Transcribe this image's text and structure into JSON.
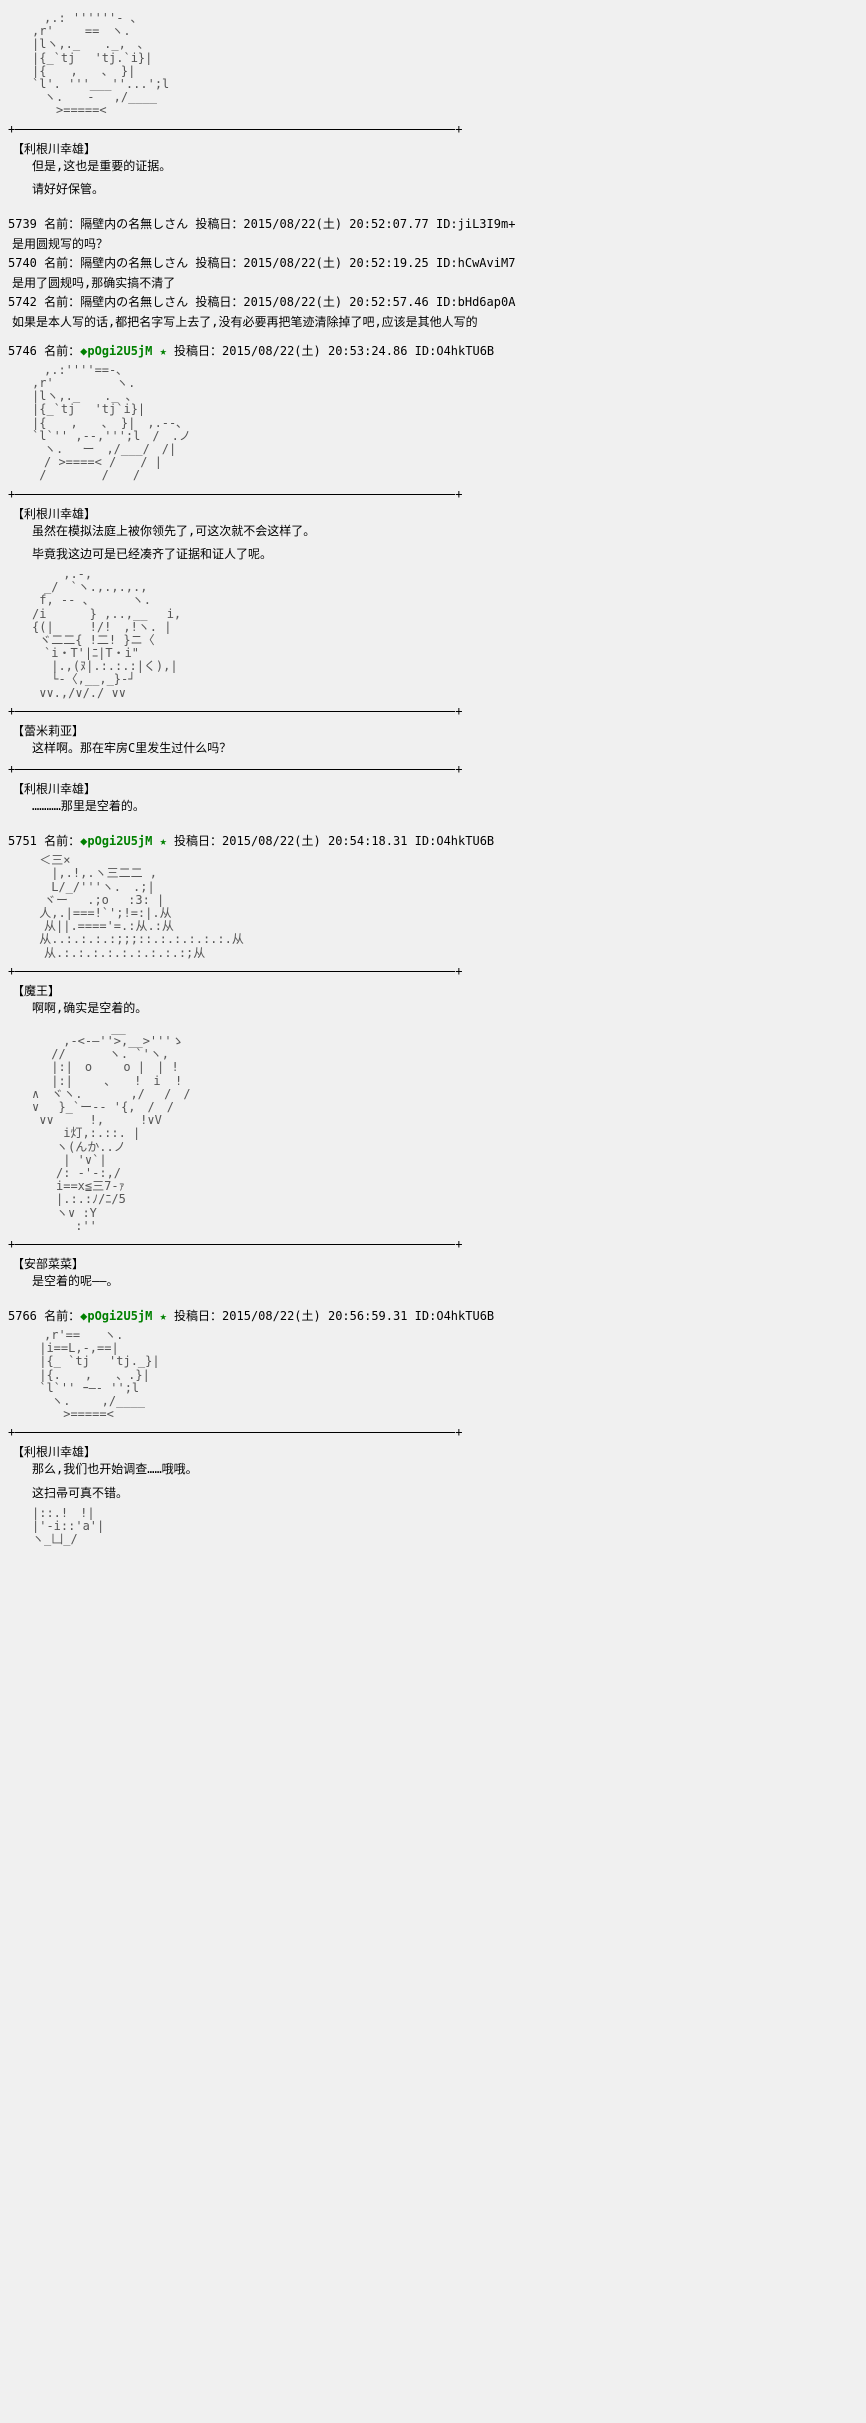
{
  "art": {
    "face1": "　　,.: ''''''- ､\n　,r'　　 ==　ヽ.\n　|lヽ,._　　._,　､\n　|{_`tj　 'tj.`i}|\n　|{　　,　　、 }|\n　`l'. '''___''...';l\n　　ヽ.　　-　 ,/____\n　　　>=====<",
    "face2": "　　,.:''''==-､\n　,r'　　 　　 ヽ.\n　|lヽ,._　　._ ､\n　|{_`tj　 'tj`i}|\n　|{　　,　　、 }|　,.--､\n　`l`'' ,--,''';l　/　.ノ\n　　ヽ.　 ー　,/___/　/|\n　　/ >====< /　　/ |\n　 /　　　　 /　　/",
    "chibi": "　　 　,.-,\n　　_/　`ヽ.,.,.,.,\n　 f, -- 、　　　 ヽ.\n　/i　　　 } ,..,__　 i,\n　{(|　　　!/!　,!ヽ. |\n　 ヾ二二{ !二! }ニ〈\n　　`i・T'|ﾆ|T・i\"\n　　 |.,(ﾇ|.:.:.:|く),|\n　　 └-〈,__,_}-┘\n　 ∨∨.,/∨/./ ∨∨",
    "maou": "　 ＜三×\n　　 |,.!,.ヽ三二二 ,\n　　 L/_/'''ヽ.　.;|\n　　ヾー　 .;o　 :3: |\n　 人,.|===!`';!=:|.从\n　　从||.===='=.:从.:从\n　 从..:.:.:.:;;;::.:.:.:.:.:.从\n　　从.:.:.:.:.:.:.:.:.:;从",
    "nana": "　　　　　　　 __\n　　 　,-<-―''>,__>'''ゝ \n　　 //　　　 ヽ. `'ヽ,\n　　 |:|　o　　 o |　| !\n　　 |:|　　 、　　!　i  !\n　∧　ヾヽ.　　　　,/　 /　/\n　∨　 }_`ー-- '{,　/　/\n　 ∨∨　　　!,　　　!∨V\n　　　 i灯,:.::. |\n　　　ヽ(んか..ノ\n　　　 | '∨`|\n　　　/: -'-:,/\n　　　i==x≦三7-ｧ\n　　　|.:.:ﾉ/ﾆ/5\n　　　ヽ∨ :Y\n　　　　 :''",
    "face3": "　　,r'==　　ヽ.\n　 |i==L,-,==|\n　 |{_ `tj　 'tj._}|\n　 |{.　　,　　、.}|\n　 `l`'' ｰ―- '';l\n　　 ヽ.　　 ,/____\n　　　 >=====<",
    "small": "　|::.!　!|\n　|'-i::'a'|\n　ヽ_凵_/"
  },
  "blocks": [
    {
      "type": "art",
      "key": "face1"
    },
    {
      "type": "div"
    },
    {
      "type": "speaker",
      "name": "【利根川幸雄】"
    },
    {
      "type": "line",
      "text": "但是,这也是重要的证据。"
    },
    {
      "type": "line",
      "text": "请好好保管。"
    },
    {
      "type": "gap"
    },
    {
      "type": "meta",
      "text": "5739 名前：隔壁内の名無しさん 投稿日：2015/08/22(土) 20:52:07.77 ID:jiL3I9m+"
    },
    {
      "type": "reply",
      "text": "是用圆规写的吗？"
    },
    {
      "type": "meta",
      "text": "5740 名前：隔壁内の名無しさん 投稿日：2015/08/22(土) 20:52:19.25 ID:hCwAviM7"
    },
    {
      "type": "reply",
      "text": "是用了圆规吗,那确实搞不清了"
    },
    {
      "type": "meta",
      "text": "5742 名前：隔壁内の名無しさん 投稿日：2015/08/22(土) 20:52:57.46 ID:bHd6ap0A"
    },
    {
      "type": "reply",
      "text": "如果是本人写的话,都把名字写上去了,没有必要再把笔迹清除掉了吧,应该是其他人写的"
    },
    {
      "type": "gap"
    },
    {
      "type": "metatrip",
      "num": "5746 名前：",
      "trip": "◆pOgi2U5jM ★",
      "rest": " 投稿日：2015/08/22(土) 20:53:24.86 ID:O4hkTU6B"
    },
    {
      "type": "art",
      "key": "face2"
    },
    {
      "type": "div"
    },
    {
      "type": "speaker",
      "name": "【利根川幸雄】"
    },
    {
      "type": "line",
      "text": "虽然在模拟法庭上被你领先了,可这次就不会这样了。"
    },
    {
      "type": "line",
      "text": "毕竟我这边可是已经凑齐了证据和证人了呢。"
    },
    {
      "type": "art",
      "key": "chibi"
    },
    {
      "type": "div"
    },
    {
      "type": "speaker",
      "name": "【蕾米莉亚】"
    },
    {
      "type": "line",
      "text": "这样啊。那在牢房C里发生过什么吗？"
    },
    {
      "type": "div"
    },
    {
      "type": "speaker",
      "name": "【利根川幸雄】"
    },
    {
      "type": "line",
      "text": "…………那里是空着的。"
    },
    {
      "type": "gap"
    },
    {
      "type": "metatrip",
      "num": "5751 名前：",
      "trip": "◆pOgi2U5jM ★",
      "rest": " 投稿日：2015/08/22(土) 20:54:18.31 ID:O4hkTU6B"
    },
    {
      "type": "art",
      "key": "maou"
    },
    {
      "type": "div"
    },
    {
      "type": "speaker",
      "name": "【魔王】"
    },
    {
      "type": "line",
      "text": "啊啊,确实是空着的。"
    },
    {
      "type": "art",
      "key": "nana"
    },
    {
      "type": "div"
    },
    {
      "type": "speaker",
      "name": "【安部菜菜】"
    },
    {
      "type": "line",
      "text": "是空着的呢――。"
    },
    {
      "type": "gap"
    },
    {
      "type": "metatrip",
      "num": "5766 名前：",
      "trip": "◆pOgi2U5jM ★",
      "rest": " 投稿日：2015/08/22(土) 20:56:59.31 ID:O4hkTU6B"
    },
    {
      "type": "art",
      "key": "face3"
    },
    {
      "type": "div"
    },
    {
      "type": "speaker",
      "name": "【利根川幸雄】"
    },
    {
      "type": "line",
      "text": "那么,我们也开始调查……哦哦。"
    },
    {
      "type": "line",
      "text": "这扫帚可真不错。"
    },
    {
      "type": "art",
      "key": "small"
    }
  ]
}
